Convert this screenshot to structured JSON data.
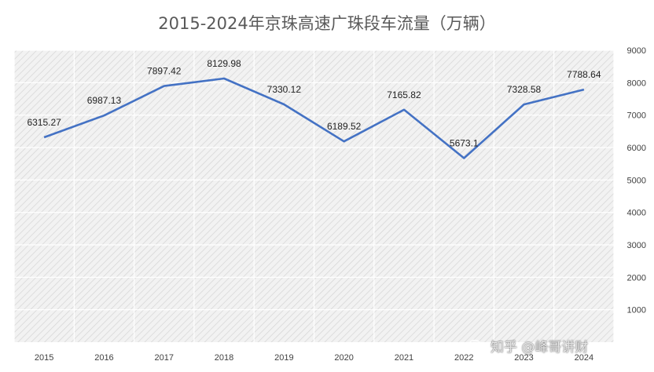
{
  "chart_data": {
    "type": "line",
    "title": "2015-2024年京珠高速广珠段车流量（万辆）",
    "categories": [
      "2015",
      "2016",
      "2017",
      "2018",
      "2019",
      "2020",
      "2021",
      "2022",
      "2023",
      "2024"
    ],
    "series": [
      {
        "values": [
          6315.27,
          6987.13,
          7897.42,
          8129.98,
          7330.12,
          6189.52,
          7165.82,
          5673.1,
          7328.58,
          7788.64
        ],
        "labels": [
          "6315.27",
          "6987.13",
          "7897.42",
          "8129.98",
          "7330.12",
          "6189.52",
          "7165.82",
          "5673.1",
          "7328.58",
          "7788.64"
        ]
      }
    ],
    "ylim": [
      0,
      9000
    ],
    "yticks": [
      "1000",
      "2000",
      "3000",
      "4000",
      "5000",
      "6000",
      "7000",
      "8000",
      "9000"
    ],
    "y_axis_position": "right",
    "grid": true,
    "line_color": "#4472c4",
    "plot_background": "hatched-light-gray"
  },
  "watermark": "知乎 @峰哥讲财"
}
